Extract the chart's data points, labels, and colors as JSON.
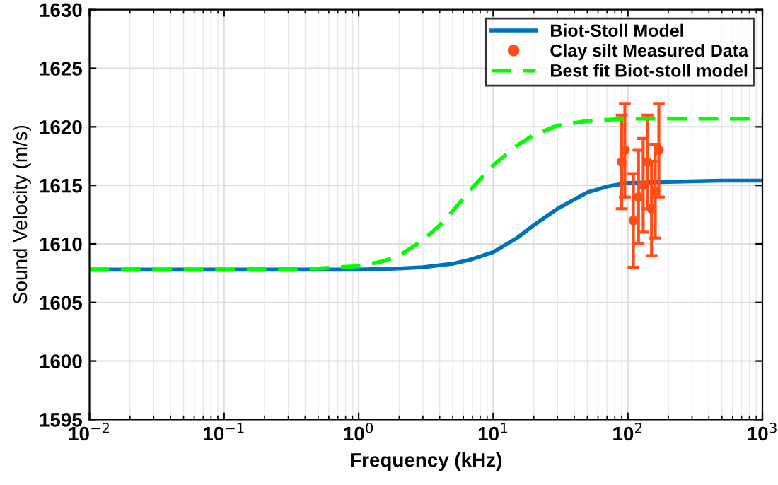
{
  "chart_data": {
    "type": "line",
    "xlabel": "Frequency (kHz)",
    "ylabel": "Sound Velocity (m/s)",
    "log": "x",
    "grid": true,
    "legend": "top right",
    "xlim": [
      0.01,
      1000
    ],
    "xticks": [
      {
        "value": 0.01,
        "label": "10$^{−2}$"
      },
      {
        "value": 0.1,
        "label": "10$^{−1}$"
      },
      {
        "value": 1,
        "label": "10$^{0}$"
      },
      {
        "value": 10,
        "label": "10$^{1}$"
      },
      {
        "value": 100,
        "label": "10$^{2}$"
      },
      {
        "value": 1000,
        "label": "10$^{3}$"
      }
    ],
    "ylim": [
      1595,
      1630
    ],
    "yticks": [
      1595,
      1600,
      1605,
      1610,
      1615,
      1620,
      1625,
      1630
    ],
    "series": [
      {
        "name": "Biot-Stoll Model",
        "color": "#0072bd",
        "line_style": "solid",
        "x": [
          0.01,
          0.1,
          0.5,
          1,
          2,
          3,
          5,
          7,
          10,
          15,
          20,
          30,
          50,
          70,
          100,
          200,
          500,
          1000
        ],
        "values": [
          1607.8,
          1607.8,
          1607.8,
          1607.8,
          1607.9,
          1608.0,
          1608.3,
          1608.7,
          1609.3,
          1610.5,
          1611.6,
          1613.0,
          1614.4,
          1614.9,
          1615.2,
          1615.3,
          1615.4,
          1615.4
        ]
      },
      {
        "name": "Clay silt Measured Data",
        "type": "scatter",
        "color": "#ff4d1a",
        "marker": "circle",
        "x": [
          90,
          95,
          110,
          120,
          130,
          140,
          150,
          160,
          170
        ],
        "values": [
          1617,
          1618,
          1612,
          1614,
          1615,
          1617,
          1613,
          1614.5,
          1618
        ],
        "errors": [
          4,
          4,
          4,
          4,
          4,
          4,
          4,
          4,
          4
        ]
      },
      {
        "name": "Best fit Biot-stoll model",
        "color": "#00ff00",
        "line_style": "dashed",
        "x": [
          0.01,
          0.1,
          0.5,
          1,
          1.5,
          2,
          3,
          4,
          5,
          7,
          10,
          15,
          20,
          30,
          50,
          70,
          100,
          200,
          500,
          1000
        ],
        "values": [
          1607.8,
          1607.8,
          1607.9,
          1608.1,
          1608.5,
          1609.0,
          1610.3,
          1611.6,
          1612.8,
          1614.8,
          1616.7,
          1618.4,
          1619.3,
          1620.1,
          1620.5,
          1620.6,
          1620.7,
          1620.7,
          1620.7,
          1620.7
        ]
      }
    ]
  }
}
